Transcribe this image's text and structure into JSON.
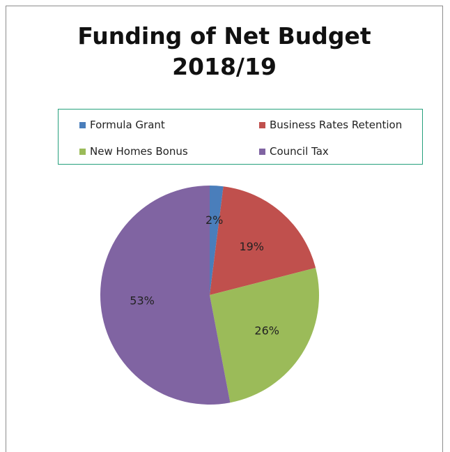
{
  "chart_data": {
    "type": "pie",
    "title_lines": [
      "Funding of Net Budget",
      "2018/19"
    ],
    "categories": [
      "Formula Grant",
      "Business Rates Retention",
      "New Homes Bonus",
      "Council Tax"
    ],
    "values": [
      2,
      19,
      26,
      53
    ],
    "value_labels": [
      "2%",
      "19%",
      "26%",
      "53%"
    ],
    "colors": [
      "#4a7ebb",
      "#c0504d",
      "#9bbb59",
      "#8064a2"
    ],
    "legend_position": "top",
    "legend_border_color": "#25a07c"
  }
}
